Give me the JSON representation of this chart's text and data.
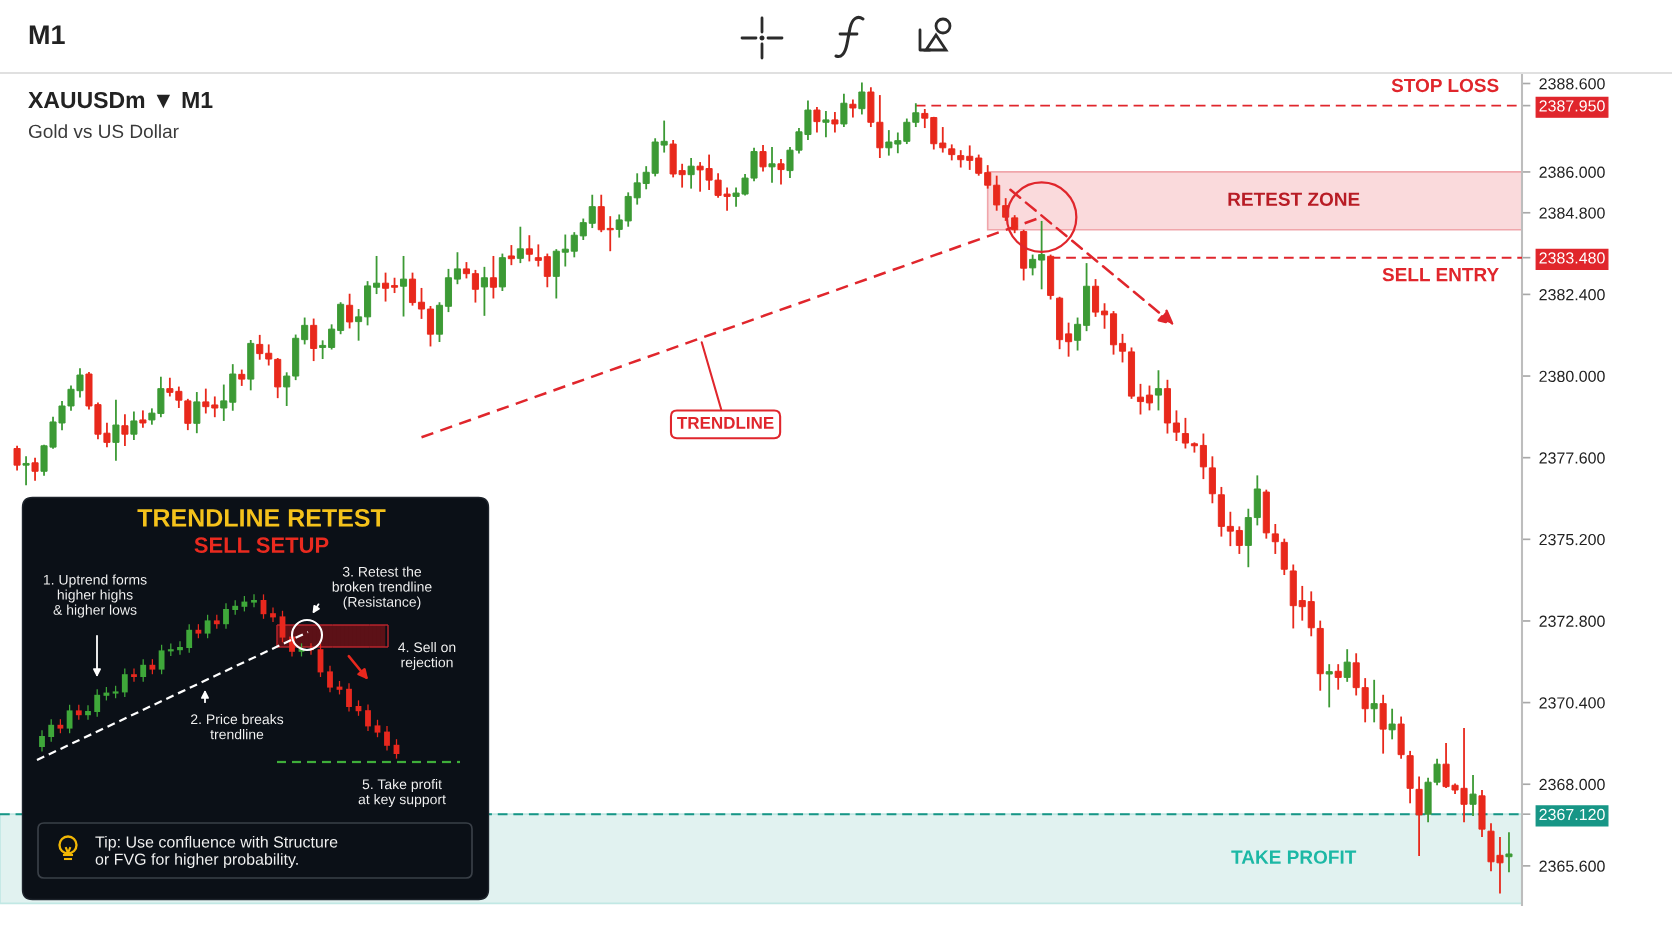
{
  "chart_data": [
    {
      "type": "candlestick",
      "title": "XAUUSDm ▼ M1",
      "subtitle": "Gold vs US Dollar",
      "categories": [
        null,
        null,
        null,
        null,
        null,
        null,
        null,
        null,
        null,
        null,
        null,
        null,
        null,
        null,
        null,
        null,
        null,
        null,
        null,
        null,
        null,
        null,
        null,
        null,
        null,
        null,
        null,
        null,
        null,
        null,
        null,
        null,
        null,
        null,
        null,
        null,
        null,
        null,
        null,
        null,
        null,
        null,
        null,
        null,
        null,
        null,
        null,
        null,
        null,
        null,
        null,
        null,
        null,
        null,
        null,
        null,
        null,
        null,
        null,
        null,
        null,
        null,
        null,
        null,
        null,
        null,
        null,
        null,
        null,
        null,
        null,
        null,
        null,
        null,
        null,
        null,
        null,
        null,
        null,
        null,
        null,
        null,
        null,
        null,
        null,
        null,
        null,
        null,
        null,
        null,
        null,
        null,
        null,
        null,
        null,
        null,
        null,
        null,
        null,
        null,
        null,
        null,
        null,
        null,
        null,
        null,
        null,
        null,
        null,
        null,
        null,
        null,
        null,
        null,
        null,
        null,
        null,
        null,
        null,
        null,
        null,
        null,
        null,
        null,
        null,
        null,
        null,
        null,
        null,
        null,
        null,
        null,
        null,
        null,
        null,
        null,
        null,
        null,
        null,
        null,
        null,
        null,
        null,
        null,
        null,
        null,
        null,
        null,
        null,
        null,
        null,
        null,
        null,
        null,
        null,
        null,
        null,
        null,
        null,
        null,
        null,
        null,
        null,
        null,
        null,
        null,
        null
      ],
      "ohlc": [
        [
          2377.87,
          2377.95,
          2377.22,
          2377.38
        ],
        [
          2377.38,
          2377.64,
          2376.79,
          2377.43
        ],
        [
          2377.45,
          2377.6,
          2376.92,
          2377.2
        ],
        [
          2377.2,
          2377.98,
          2377.07,
          2377.95
        ],
        [
          2377.91,
          2378.8,
          2377.86,
          2378.65
        ],
        [
          2378.62,
          2379.27,
          2378.41,
          2379.12
        ],
        [
          2379.12,
          2379.72,
          2378.98,
          2379.61
        ],
        [
          2379.57,
          2380.23,
          2379.37,
          2380.03
        ],
        [
          2380.06,
          2380.12,
          2379.02,
          2379.12
        ],
        [
          2379.16,
          2379.22,
          2378.14,
          2378.29
        ],
        [
          2378.32,
          2378.63,
          2377.91,
          2378.05
        ],
        [
          2378.05,
          2379.3,
          2377.51,
          2378.56
        ],
        [
          2378.54,
          2378.88,
          2377.94,
          2378.29
        ],
        [
          2378.29,
          2378.96,
          2378.12,
          2378.68
        ],
        [
          2378.71,
          2378.99,
          2378.48,
          2378.62
        ],
        [
          2378.71,
          2379.05,
          2378.57,
          2378.91
        ],
        [
          2378.9,
          2379.98,
          2378.79,
          2379.63
        ],
        [
          2379.63,
          2379.95,
          2379.4,
          2379.52
        ],
        [
          2379.55,
          2379.69,
          2379.06,
          2379.29
        ],
        [
          2379.27,
          2379.33,
          2378.41,
          2378.61
        ],
        [
          2378.61,
          2379.53,
          2378.32,
          2379.24
        ],
        [
          2379.24,
          2379.63,
          2378.9,
          2379.1
        ],
        [
          2379.15,
          2379.4,
          2378.79,
          2379.06
        ],
        [
          2379.06,
          2379.75,
          2378.68,
          2379.27
        ],
        [
          2379.23,
          2380.35,
          2378.98,
          2380.06
        ],
        [
          2380.05,
          2380.19,
          2379.71,
          2379.91
        ],
        [
          2379.91,
          2381.06,
          2379.58,
          2380.96
        ],
        [
          2380.93,
          2381.21,
          2380.48,
          2380.66
        ],
        [
          2380.67,
          2380.93,
          2380.31,
          2380.5
        ],
        [
          2380.49,
          2380.53,
          2379.35,
          2379.68
        ],
        [
          2379.68,
          2380.11,
          2379.12,
          2380.0
        ],
        [
          2380.0,
          2381.22,
          2379.88,
          2381.11
        ],
        [
          2381.07,
          2381.72,
          2380.93,
          2381.49
        ],
        [
          2381.49,
          2381.69,
          2380.44,
          2380.81
        ],
        [
          2380.84,
          2381.05,
          2380.5,
          2380.9
        ],
        [
          2380.84,
          2381.52,
          2380.78,
          2381.38
        ],
        [
          2381.34,
          2382.17,
          2381.23,
          2382.11
        ],
        [
          2382.08,
          2382.42,
          2381.4,
          2381.59
        ],
        [
          2381.6,
          2381.97,
          2381.04,
          2381.74
        ],
        [
          2381.74,
          2382.79,
          2381.49,
          2382.65
        ],
        [
          2382.61,
          2383.53,
          2382.41,
          2382.73
        ],
        [
          2382.73,
          2383.04,
          2382.19,
          2382.58
        ],
        [
          2382.66,
          2382.89,
          2382.44,
          2382.61
        ],
        [
          2382.64,
          2383.53,
          2381.75,
          2382.85
        ],
        [
          2382.85,
          2383.04,
          2382.07,
          2382.16
        ],
        [
          2382.17,
          2382.59,
          2381.68,
          2381.97
        ],
        [
          2381.97,
          2382.06,
          2380.87,
          2381.23
        ],
        [
          2381.23,
          2382.17,
          2381.0,
          2382.08
        ],
        [
          2382.05,
          2383.15,
          2381.88,
          2382.89
        ],
        [
          2382.85,
          2383.64,
          2382.7,
          2383.15
        ],
        [
          2383.15,
          2383.35,
          2382.87,
          2383.01
        ],
        [
          2383.01,
          2383.12,
          2382.16,
          2382.55
        ],
        [
          2382.62,
          2383.21,
          2381.77,
          2382.89
        ],
        [
          2382.89,
          2383.53,
          2382.28,
          2382.61
        ],
        [
          2382.62,
          2383.6,
          2382.5,
          2383.48
        ],
        [
          2383.53,
          2383.85,
          2383.26,
          2383.45
        ],
        [
          2383.46,
          2384.39,
          2383.32,
          2383.74
        ],
        [
          2383.74,
          2384.14,
          2383.37,
          2383.58
        ],
        [
          2383.48,
          2383.87,
          2383.22,
          2383.4
        ],
        [
          2383.51,
          2383.6,
          2382.61,
          2382.93
        ],
        [
          2382.93,
          2383.73,
          2382.28,
          2383.67
        ],
        [
          2383.64,
          2384.16,
          2383.22,
          2383.73
        ],
        [
          2383.67,
          2384.23,
          2383.49,
          2384.14
        ],
        [
          2384.12,
          2384.63,
          2384.0,
          2384.51
        ],
        [
          2384.49,
          2385.33,
          2384.35,
          2384.98
        ],
        [
          2384.98,
          2385.33,
          2384.23,
          2384.3
        ],
        [
          2384.34,
          2384.7,
          2383.67,
          2384.3
        ],
        [
          2384.31,
          2384.75,
          2384.07,
          2384.59
        ],
        [
          2384.56,
          2385.4,
          2384.39,
          2385.28
        ],
        [
          2385.24,
          2385.96,
          2385.04,
          2385.68
        ],
        [
          2385.66,
          2386.17,
          2385.49,
          2385.99
        ],
        [
          2385.96,
          2386.99,
          2385.87,
          2386.88
        ],
        [
          2386.79,
          2387.51,
          2386.57,
          2386.9
        ],
        [
          2386.82,
          2386.94,
          2385.84,
          2385.94
        ],
        [
          2386.04,
          2386.24,
          2385.54,
          2385.92
        ],
        [
          2385.92,
          2386.41,
          2385.51,
          2386.17
        ],
        [
          2386.17,
          2386.29,
          2385.42,
          2386.06
        ],
        [
          2386.1,
          2386.51,
          2385.47,
          2385.76
        ],
        [
          2385.76,
          2385.96,
          2385.24,
          2385.31
        ],
        [
          2385.35,
          2385.54,
          2384.86,
          2385.28
        ],
        [
          2385.28,
          2385.54,
          2384.98,
          2385.38
        ],
        [
          2385.35,
          2385.94,
          2385.31,
          2385.82
        ],
        [
          2385.82,
          2386.71,
          2385.73,
          2386.6
        ],
        [
          2386.6,
          2386.79,
          2386.01,
          2386.15
        ],
        [
          2386.15,
          2386.73,
          2385.68,
          2386.24
        ],
        [
          2386.24,
          2386.38,
          2385.63,
          2386.07
        ],
        [
          2386.04,
          2386.73,
          2385.82,
          2386.64
        ],
        [
          2386.64,
          2387.29,
          2386.54,
          2387.18
        ],
        [
          2387.1,
          2388.1,
          2386.94,
          2387.82
        ],
        [
          2387.82,
          2387.91,
          2387.16,
          2387.48
        ],
        [
          2387.46,
          2387.79,
          2387.02,
          2387.53
        ],
        [
          2387.53,
          2387.76,
          2387.16,
          2387.41
        ],
        [
          2387.41,
          2388.3,
          2387.32,
          2388.02
        ],
        [
          2387.99,
          2388.13,
          2387.6,
          2387.88
        ],
        [
          2387.86,
          2388.63,
          2387.69,
          2388.35
        ],
        [
          2388.35,
          2388.49,
          2387.32,
          2387.46
        ],
        [
          2387.46,
          2388.26,
          2386.41,
          2386.71
        ],
        [
          2386.71,
          2387.23,
          2386.48,
          2386.88
        ],
        [
          2386.82,
          2387.16,
          2386.55,
          2386.92
        ],
        [
          2386.9,
          2387.57,
          2386.82,
          2387.46
        ],
        [
          2387.46,
          2388.02,
          2387.32,
          2387.74
        ],
        [
          2387.72,
          2387.85,
          2387.29,
          2387.58
        ],
        [
          2387.6,
          2387.62,
          2386.66,
          2386.83
        ],
        [
          2386.85,
          2387.32,
          2386.57,
          2386.71
        ],
        [
          2386.68,
          2386.81,
          2386.34,
          2386.51
        ],
        [
          2386.48,
          2386.64,
          2386.13,
          2386.36
        ],
        [
          2386.46,
          2386.78,
          2386.06,
          2386.34
        ],
        [
          2386.41,
          2386.51,
          2385.89,
          2385.96
        ],
        [
          2385.98,
          2386.2,
          2385.51,
          2385.61
        ],
        [
          2385.61,
          2385.89,
          2384.86,
          2385.03
        ],
        [
          2385.01,
          2385.23,
          2384.56,
          2384.67
        ],
        [
          2384.65,
          2384.73,
          2384.2,
          2384.3
        ],
        [
          2384.25,
          2384.3,
          2382.81,
          2383.17
        ],
        [
          2383.18,
          2383.57,
          2382.96,
          2383.43
        ],
        [
          2383.41,
          2384.56,
          2382.55,
          2383.57
        ],
        [
          2383.52,
          2383.57,
          2382.25,
          2382.37
        ],
        [
          2382.29,
          2382.33,
          2380.79,
          2381.07
        ],
        [
          2381.24,
          2381.57,
          2380.57,
          2381.01
        ],
        [
          2381.05,
          2381.72,
          2380.75,
          2381.52
        ],
        [
          2381.49,
          2383.32,
          2381.32,
          2382.64
        ],
        [
          2382.64,
          2382.85,
          2381.74,
          2381.88
        ],
        [
          2381.91,
          2382.14,
          2381.39,
          2381.8
        ],
        [
          2381.83,
          2381.91,
          2380.63,
          2380.92
        ],
        [
          2380.96,
          2381.24,
          2380.4,
          2380.73
        ],
        [
          2380.71,
          2380.84,
          2379.33,
          2379.41
        ],
        [
          2379.38,
          2379.77,
          2378.87,
          2379.25
        ],
        [
          2379.44,
          2379.72,
          2378.99,
          2379.21
        ],
        [
          2379.44,
          2380.17,
          2378.99,
          2379.63
        ],
        [
          2379.63,
          2379.89,
          2378.31,
          2378.62
        ],
        [
          2378.62,
          2378.99,
          2378.09,
          2378.35
        ],
        [
          2378.31,
          2378.77,
          2377.87,
          2378.03
        ],
        [
          2378.01,
          2378.05,
          2377.75,
          2377.95
        ],
        [
          2377.96,
          2378.31,
          2376.97,
          2377.33
        ],
        [
          2377.3,
          2377.64,
          2376.26,
          2376.54
        ],
        [
          2376.51,
          2376.74,
          2375.28,
          2375.58
        ],
        [
          2375.58,
          2376.01,
          2375.0,
          2375.44
        ],
        [
          2375.46,
          2375.58,
          2374.77,
          2375.02
        ],
        [
          2375.02,
          2376.1,
          2374.38,
          2375.84
        ],
        [
          2375.84,
          2377.08,
          2375.61,
          2376.68
        ],
        [
          2376.59,
          2376.66,
          2375.22,
          2375.39
        ],
        [
          2375.36,
          2375.65,
          2374.77,
          2375.13
        ],
        [
          2375.11,
          2375.22,
          2374.15,
          2374.32
        ],
        [
          2374.27,
          2374.46,
          2372.58,
          2373.25
        ],
        [
          2373.4,
          2373.83,
          2372.81,
          2373.22
        ],
        [
          2373.37,
          2373.67,
          2372.35,
          2372.6
        ],
        [
          2372.58,
          2372.81,
          2370.75,
          2371.25
        ],
        [
          2371.24,
          2371.53,
          2370.26,
          2371.31
        ],
        [
          2371.32,
          2371.53,
          2370.78,
          2371.14
        ],
        [
          2371.14,
          2371.97,
          2371.01,
          2371.59
        ],
        [
          2371.57,
          2371.85,
          2370.61,
          2370.84
        ],
        [
          2370.84,
          2371.12,
          2369.82,
          2370.22
        ],
        [
          2370.22,
          2371.07,
          2369.82,
          2370.37
        ],
        [
          2370.37,
          2370.63,
          2368.9,
          2369.62
        ],
        [
          2369.6,
          2370.22,
          2369.32,
          2369.77
        ],
        [
          2369.77,
          2369.99,
          2368.75,
          2368.87
        ],
        [
          2368.84,
          2368.98,
          2367.44,
          2367.88
        ],
        [
          2367.85,
          2368.23,
          2365.89,
          2367.1
        ],
        [
          2367.12,
          2368.19,
          2366.88,
          2368.06
        ],
        [
          2368.06,
          2368.75,
          2367.97,
          2368.59
        ],
        [
          2368.59,
          2369.21,
          2367.89,
          2367.93
        ],
        [
          2367.97,
          2368.02,
          2367.71,
          2367.83
        ],
        [
          2367.88,
          2369.65,
          2366.88,
          2367.41
        ],
        [
          2367.41,
          2368.27,
          2367.07,
          2367.71
        ],
        [
          2367.66,
          2367.83,
          2366.45,
          2366.68
        ],
        [
          2366.62,
          2366.85,
          2365.44,
          2365.72
        ],
        [
          2365.91,
          2366.45,
          2364.79,
          2365.69
        ],
        [
          2365.87,
          2366.59,
          2365.41,
          2365.95
        ]
      ],
      "colors": [
        "#e8291c",
        "#3c9a35",
        "#e8291c",
        "#3c9a35",
        "#3c9a35",
        "#3c9a35",
        "#3c9a35",
        "#3c9a35",
        "#e8291c",
        "#e8291c",
        "#e8291c",
        "#3c9a35",
        "#e8291c",
        "#3c9a35",
        "#e8291c",
        "#3c9a35",
        "#3c9a35",
        "#e8291c",
        "#e8291c",
        "#e8291c",
        "#3c9a35",
        "#e8291c",
        "#e8291c",
        "#3c9a35",
        "#3c9a35",
        "#e8291c",
        "#3c9a35",
        "#e8291c",
        "#e8291c",
        "#e8291c",
        "#3c9a35",
        "#3c9a35",
        "#3c9a35",
        "#e8291c",
        "#3c9a35",
        "#3c9a35",
        "#3c9a35",
        "#e8291c",
        "#3c9a35",
        "#3c9a35",
        "#3c9a35",
        "#e8291c",
        "#e8291c",
        "#3c9a35",
        "#e8291c",
        "#e8291c",
        "#e8291c",
        "#3c9a35",
        "#3c9a35",
        "#3c9a35",
        "#e8291c",
        "#e8291c",
        "#3c9a35",
        "#e8291c",
        "#3c9a35",
        "#e8291c",
        "#3c9a35",
        "#e8291c",
        "#e8291c",
        "#e8291c",
        "#3c9a35",
        "#3c9a35",
        "#3c9a35",
        "#3c9a35",
        "#3c9a35",
        "#e8291c",
        "#e8291c",
        "#3c9a35",
        "#3c9a35",
        "#3c9a35",
        "#3c9a35",
        "#3c9a35",
        "#3c9a35",
        "#e8291c",
        "#e8291c",
        "#3c9a35",
        "#e8291c",
        "#e8291c",
        "#e8291c",
        "#e8291c",
        "#3c9a35",
        "#3c9a35",
        "#3c9a35",
        "#e8291c",
        "#3c9a35",
        "#e8291c",
        "#3c9a35",
        "#3c9a35",
        "#3c9a35",
        "#e8291c",
        "#3c9a35",
        "#e8291c",
        "#3c9a35",
        "#e8291c",
        "#3c9a35",
        "#e8291c",
        "#e8291c",
        "#3c9a35",
        "#3c9a35",
        "#3c9a35",
        "#3c9a35",
        "#e8291c",
        "#e8291c",
        "#e8291c",
        "#e8291c",
        "#e8291c",
        "#e8291c",
        "#e8291c",
        "#e8291c",
        "#e8291c",
        "#e8291c",
        "#e8291c",
        "#e8291c",
        "#3c9a35",
        "#3c9a35",
        "#e8291c",
        "#e8291c",
        "#e8291c",
        "#3c9a35",
        "#3c9a35",
        "#e8291c",
        "#e8291c",
        "#e8291c",
        "#e8291c",
        "#e8291c",
        "#e8291c",
        "#e8291c",
        "#3c9a35",
        "#e8291c",
        "#e8291c",
        "#e8291c",
        "#e8291c",
        "#e8291c",
        "#e8291c",
        "#e8291c",
        "#e8291c",
        "#e8291c",
        "#3c9a35",
        "#3c9a35",
        "#e8291c",
        "#e8291c",
        "#e8291c",
        "#e8291c",
        "#e8291c",
        "#e8291c",
        "#e8291c",
        "#3c9a35",
        "#e8291c",
        "#3c9a35",
        "#e8291c",
        "#e8291c",
        "#3c9a35",
        "#e8291c",
        "#3c9a35",
        "#e8291c",
        "#e8291c",
        "#e8291c",
        "#3c9a35",
        "#3c9a35",
        "#e8291c",
        "#e8291c",
        "#e8291c",
        "#3c9a35",
        "#e8291c",
        "#e8291c",
        "#e8291c",
        "#3c9a35"
      ],
      "series": [
        {
          "name": "TRENDLINE",
          "type": "line",
          "color": "#e0262c",
          "line_style": "dashed",
          "values": [
            null,
            null,
            null,
            null,
            null,
            null,
            null,
            null,
            null,
            null,
            null,
            null,
            null,
            null,
            null,
            null,
            null,
            null,
            null,
            null,
            null,
            null,
            null,
            null,
            null,
            null,
            null,
            null,
            null,
            null,
            null,
            null,
            null,
            null,
            null,
            null,
            null,
            null,
            null,
            null,
            null,
            null,
            null,
            null,
            null,
            2378.2,
            null,
            null,
            null,
            null,
            null,
            null,
            null,
            null,
            null,
            null,
            null,
            null,
            null,
            null,
            null,
            null,
            null,
            null,
            null,
            null,
            null,
            null,
            null,
            null,
            null,
            null,
            null,
            null,
            null,
            null,
            null,
            null,
            null,
            null,
            null,
            null,
            null,
            null,
            null,
            null,
            null,
            null,
            null,
            null,
            null,
            null,
            null,
            null,
            null,
            null,
            null,
            null,
            null,
            null,
            null,
            null,
            null,
            null,
            null,
            null,
            null,
            null,
            null,
            null,
            null,
            null,
            null,
            null,
            2384.67,
            null,
            null,
            null,
            null,
            null,
            null,
            null,
            null,
            null,
            null,
            null,
            null,
            null,
            null,
            null,
            null,
            null,
            null,
            null,
            null,
            null,
            null,
            null,
            null,
            null,
            null,
            null,
            null,
            null,
            null,
            null,
            null,
            null,
            null,
            null,
            null,
            null,
            null,
            null,
            null,
            null,
            null,
            null,
            null,
            null,
            null,
            null,
            null,
            null,
            null,
            null,
            null
          ]
        }
      ],
      "ylim": [
        2364.45,
        2388.85
      ],
      "yticks": [
        {
          "value": 2388.6,
          "label": "2388.600"
        },
        {
          "value": 2387.95,
          "label": "2387.950"
        },
        {
          "value": 2386.0,
          "label": "2386.000"
        },
        {
          "value": 2384.8,
          "label": "2384.800"
        },
        {
          "value": 2383.48,
          "label": "2383.480"
        },
        {
          "value": 2382.4,
          "label": "2382.400"
        },
        {
          "value": 2380.0,
          "label": "2380.000"
        },
        {
          "value": 2377.6,
          "label": "2377.600"
        },
        {
          "value": 2375.2,
          "label": "2375.200"
        },
        {
          "value": 2372.8,
          "label": "2372.800"
        },
        {
          "value": 2370.4,
          "label": "2370.400"
        },
        {
          "value": 2368.0,
          "label": "2368.000"
        },
        {
          "value": 2367.12,
          "label": "2367.120"
        },
        {
          "value": 2365.6,
          "label": "2365.600"
        }
      ],
      "ref_lines": [
        {
          "axis": "y",
          "value": 2387.95,
          "label": "STOP LOSS",
          "color": "#e0262c",
          "line_style": "dashed"
        },
        {
          "axis": "y",
          "value": 2383.48,
          "label": "SELL ENTRY",
          "color": "#e0262c",
          "line_style": "dashed"
        },
        {
          "axis": "y",
          "value": 2367.12,
          "color": "#179686",
          "line_style": "dashed"
        }
      ],
      "bands": [
        {
          "axis": "y",
          "from": 2384.3,
          "to": 2386.0,
          "label": "RETEST ZONE",
          "color": "#fadadc"
        },
        {
          "axis": "y",
          "from": 2364.5,
          "to": 2367.12,
          "label": "TAKE PROFIT",
          "color": "#e1f2f0"
        }
      ],
      "annotations": [
        "M1"
      ],
      "tick_labels": "y"
    },
    {
      "type": "other",
      "title": "TRENDLINE RETEST",
      "subtitle": "SELL SETUP",
      "annotations": [
        "1. Uptrend forms\nhigher highs\n& higher lows",
        "2. Price breaks\ntrendline",
        "3. Retest the\nbroken trendline\n(Resistance)",
        "4. Sell on\nrejection",
        "5. Take profit\nat key support",
        "Tip: Use confluence with Structure\nor FVG for higher probability."
      ]
    }
  ]
}
